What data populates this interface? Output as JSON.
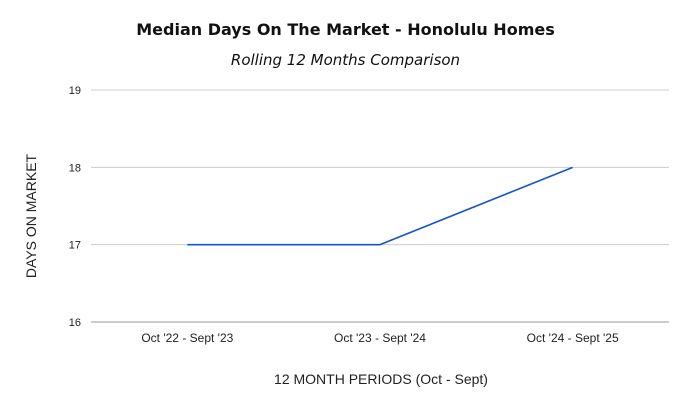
{
  "chart_data": {
    "type": "line",
    "title": "Median Days On The Market - Honolulu Homes",
    "subtitle": "Rolling 12 Months Comparison",
    "xlabel": "12 MONTH PERIODS (Oct - Sept)",
    "ylabel": "DAYS ON MARKET",
    "categories": [
      "Oct '22 - Sept '23",
      "Oct '23 - Sept '24",
      "Oct '24 - Sept '25"
    ],
    "series": [
      {
        "values": [
          17,
          17,
          18
        ],
        "color": "#1155cc"
      }
    ],
    "ylim": [
      16,
      19
    ],
    "yticks": [
      16,
      17,
      18,
      19
    ],
    "grid": true,
    "legend": "none"
  }
}
